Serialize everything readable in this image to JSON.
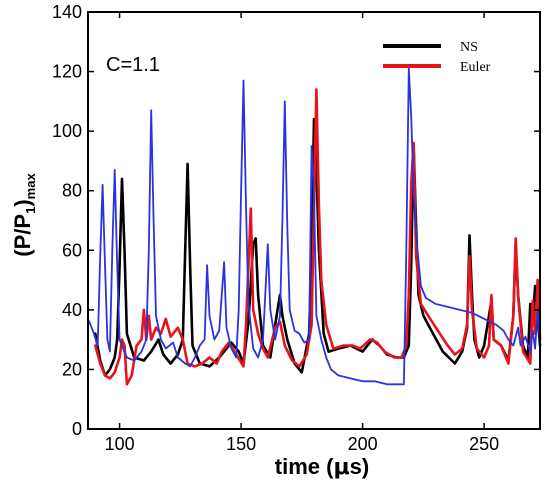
{
  "chart_data": {
    "type": "line",
    "title": "",
    "annotation": "C=1.1",
    "xlabel": {
      "main": "time (",
      "mu": "μ",
      "unit": "s)"
    },
    "ylabel": {
      "open": "(P/P",
      "sub1": "1",
      "close": ")",
      "sub2": "max"
    },
    "xlim": [
      87,
      273
    ],
    "ylim": [
      0,
      140
    ],
    "xticks": [
      100,
      150,
      200,
      250
    ],
    "yticks": [
      0,
      20,
      40,
      60,
      80,
      100,
      120,
      140
    ],
    "legend": {
      "placement": "top-right",
      "entries": [
        "NS",
        "Euler"
      ]
    },
    "colors": {
      "NS": "#000000",
      "Euler": "#e8141b",
      "blue": "#2b32e0"
    },
    "series": [
      {
        "name": "NS",
        "color": "#000000",
        "points": [
          [
            90,
            32
          ],
          [
            92,
            23
          ],
          [
            94,
            18
          ],
          [
            96,
            20
          ],
          [
            98,
            24
          ],
          [
            99,
            30
          ],
          [
            100,
            55
          ],
          [
            101,
            84
          ],
          [
            102,
            60
          ],
          [
            103,
            32
          ],
          [
            106,
            24
          ],
          [
            110,
            23
          ],
          [
            113,
            26
          ],
          [
            116,
            30
          ],
          [
            118,
            25
          ],
          [
            121,
            22
          ],
          [
            124,
            25
          ],
          [
            126,
            30
          ],
          [
            127,
            60
          ],
          [
            128,
            89
          ],
          [
            129,
            55
          ],
          [
            130,
            28
          ],
          [
            133,
            22
          ],
          [
            137,
            21
          ],
          [
            141,
            24
          ],
          [
            146,
            29
          ],
          [
            149,
            26
          ],
          [
            151,
            22
          ],
          [
            153,
            36
          ],
          [
            155,
            62
          ],
          [
            156,
            64
          ],
          [
            157,
            45
          ],
          [
            159,
            28
          ],
          [
            162,
            24
          ],
          [
            165,
            40
          ],
          [
            166,
            45
          ],
          [
            167,
            38
          ],
          [
            169,
            30
          ],
          [
            172,
            22
          ],
          [
            175,
            19
          ],
          [
            178,
            32
          ],
          [
            179,
            60
          ],
          [
            180,
            104
          ],
          [
            181,
            88
          ],
          [
            182,
            60
          ],
          [
            184,
            32
          ],
          [
            186,
            26
          ],
          [
            190,
            27
          ],
          [
            195,
            28
          ],
          [
            200,
            26
          ],
          [
            204,
            30
          ],
          [
            207,
            28
          ],
          [
            210,
            25
          ],
          [
            214,
            24
          ],
          [
            217,
            24
          ],
          [
            219,
            28
          ],
          [
            220,
            55
          ],
          [
            221,
            96
          ],
          [
            222,
            68
          ],
          [
            223,
            45
          ],
          [
            225,
            38
          ],
          [
            229,
            32
          ],
          [
            233,
            26
          ],
          [
            238,
            22
          ],
          [
            241,
            26
          ],
          [
            243,
            34
          ],
          [
            244,
            65
          ],
          [
            245,
            45
          ],
          [
            246,
            30
          ],
          [
            248,
            24
          ],
          [
            250,
            28
          ],
          [
            253,
            43
          ],
          [
            254,
            30
          ],
          [
            257,
            28
          ],
          [
            260,
            23
          ],
          [
            262,
            38
          ],
          [
            263,
            62
          ],
          [
            264,
            45
          ],
          [
            266,
            28
          ],
          [
            268,
            24
          ],
          [
            269,
            42
          ],
          [
            270,
            35
          ],
          [
            271,
            48
          ],
          [
            273,
            28
          ]
        ]
      },
      {
        "name": "Euler",
        "color": "#e8141b",
        "points": [
          [
            90,
            28
          ],
          [
            92,
            22
          ],
          [
            94,
            18
          ],
          [
            96,
            17
          ],
          [
            98,
            19
          ],
          [
            100,
            24
          ],
          [
            101,
            30
          ],
          [
            102,
            28
          ],
          [
            103,
            15
          ],
          [
            105,
            18
          ],
          [
            107,
            28
          ],
          [
            109,
            30
          ],
          [
            110,
            40
          ],
          [
            111,
            30
          ],
          [
            112,
            38
          ],
          [
            113,
            30
          ],
          [
            115,
            34
          ],
          [
            117,
            32
          ],
          [
            119,
            37
          ],
          [
            121,
            31
          ],
          [
            124,
            34
          ],
          [
            126,
            30
          ],
          [
            128,
            22
          ],
          [
            131,
            21
          ],
          [
            134,
            22
          ],
          [
            137,
            24
          ],
          [
            140,
            22
          ],
          [
            142,
            26
          ],
          [
            145,
            29
          ],
          [
            148,
            25
          ],
          [
            151,
            21
          ],
          [
            152,
            35
          ],
          [
            154,
            74
          ],
          [
            155,
            40
          ],
          [
            157,
            32
          ],
          [
            159,
            27
          ],
          [
            161,
            24
          ],
          [
            164,
            34
          ],
          [
            166,
            36
          ],
          [
            168,
            28
          ],
          [
            171,
            23
          ],
          [
            174,
            21
          ],
          [
            177,
            25
          ],
          [
            179,
            35
          ],
          [
            181,
            114
          ],
          [
            182,
            75
          ],
          [
            183,
            50
          ],
          [
            185,
            35
          ],
          [
            188,
            27
          ],
          [
            192,
            28
          ],
          [
            196,
            28
          ],
          [
            199,
            27
          ],
          [
            203,
            30
          ],
          [
            206,
            29
          ],
          [
            209,
            26
          ],
          [
            213,
            24
          ],
          [
            216,
            24
          ],
          [
            218,
            28
          ],
          [
            219,
            45
          ],
          [
            220,
            82
          ],
          [
            221,
            96
          ],
          [
            222,
            58
          ],
          [
            224,
            42
          ],
          [
            227,
            38
          ],
          [
            231,
            33
          ],
          [
            235,
            28
          ],
          [
            238,
            25
          ],
          [
            241,
            27
          ],
          [
            243,
            35
          ],
          [
            244,
            58
          ],
          [
            245,
            40
          ],
          [
            247,
            27
          ],
          [
            250,
            24
          ],
          [
            252,
            28
          ],
          [
            253,
            45
          ],
          [
            254,
            30
          ],
          [
            257,
            28
          ],
          [
            260,
            22
          ],
          [
            262,
            38
          ],
          [
            263,
            64
          ],
          [
            264,
            45
          ],
          [
            266,
            26
          ],
          [
            269,
            22
          ],
          [
            270,
            43
          ],
          [
            271,
            32
          ],
          [
            272,
            50
          ],
          [
            273,
            30
          ]
        ]
      },
      {
        "name": "",
        "color": "#2b32e0",
        "points": [
          [
            87,
            37
          ],
          [
            89,
            33
          ],
          [
            91,
            28
          ],
          [
            92,
            58
          ],
          [
            93,
            82
          ],
          [
            94,
            55
          ],
          [
            95,
            30
          ],
          [
            96,
            26
          ],
          [
            97,
            60
          ],
          [
            98,
            87
          ],
          [
            99,
            55
          ],
          [
            100,
            30
          ],
          [
            103,
            24
          ],
          [
            106,
            23
          ],
          [
            109,
            26
          ],
          [
            111,
            30
          ],
          [
            112,
            60
          ],
          [
            113,
            107
          ],
          [
            114,
            70
          ],
          [
            115,
            38
          ],
          [
            117,
            30
          ],
          [
            119,
            27
          ],
          [
            122,
            29
          ],
          [
            124,
            24
          ],
          [
            127,
            22
          ],
          [
            129,
            21
          ],
          [
            131,
            24
          ],
          [
            133,
            28
          ],
          [
            135,
            30
          ],
          [
            136,
            55
          ],
          [
            137,
            38
          ],
          [
            139,
            30
          ],
          [
            141,
            33
          ],
          [
            143,
            56
          ],
          [
            144,
            34
          ],
          [
            146,
            27
          ],
          [
            148,
            24
          ],
          [
            149,
            40
          ],
          [
            150,
            80
          ],
          [
            151,
            117
          ],
          [
            152,
            75
          ],
          [
            153,
            42
          ],
          [
            155,
            27
          ],
          [
            157,
            24
          ],
          [
            159,
            30
          ],
          [
            160,
            46
          ],
          [
            161,
            62
          ],
          [
            162,
            40
          ],
          [
            164,
            30
          ],
          [
            166,
            38
          ],
          [
            167,
            70
          ],
          [
            168,
            110
          ],
          [
            169,
            68
          ],
          [
            170,
            40
          ],
          [
            172,
            33
          ],
          [
            174,
            32
          ],
          [
            176,
            29
          ],
          [
            178,
            30
          ],
          [
            179,
            95
          ],
          [
            180,
            78
          ],
          [
            181,
            38
          ],
          [
            183,
            30
          ],
          [
            185,
            24
          ],
          [
            187,
            20
          ],
          [
            190,
            18
          ],
          [
            195,
            17
          ],
          [
            200,
            16
          ],
          [
            205,
            16
          ],
          [
            210,
            15
          ],
          [
            215,
            15
          ],
          [
            217,
            15
          ],
          [
            218,
            60
          ],
          [
            219,
            121
          ],
          [
            220,
            105
          ],
          [
            221,
            80
          ],
          [
            222,
            65
          ],
          [
            224,
            48
          ],
          [
            226,
            44
          ],
          [
            230,
            42
          ],
          [
            235,
            41
          ],
          [
            240,
            40
          ],
          [
            245,
            39
          ],
          [
            250,
            37
          ],
          [
            255,
            35
          ],
          [
            258,
            33
          ],
          [
            260,
            30
          ],
          [
            262,
            28
          ],
          [
            264,
            34
          ],
          [
            265,
            28
          ],
          [
            267,
            31
          ],
          [
            269,
            26
          ],
          [
            270,
            33
          ],
          [
            271,
            27
          ],
          [
            272,
            40
          ],
          [
            273,
            30
          ]
        ]
      }
    ]
  }
}
